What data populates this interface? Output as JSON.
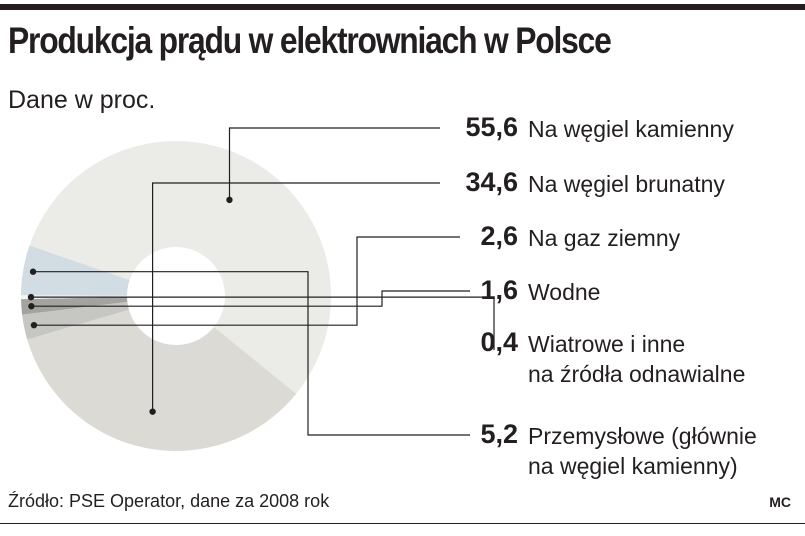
{
  "header": {
    "title": "Produkcja prądu w elektrowniach w Polsce",
    "subtitle": "Dane w proc."
  },
  "chart_data": {
    "type": "pie",
    "title": "Produkcja prądu w elektrowniach w Polsce",
    "subtitle": "Dane w proc.",
    "unit": "proc.",
    "slices": [
      {
        "label": "Na węgiel kamienny",
        "value": 55.6,
        "value_text": "55,6",
        "color": "#ebebe7"
      },
      {
        "label": "Na węgiel brunatny",
        "value": 34.6,
        "value_text": "34,6",
        "color": "#dbdad4"
      },
      {
        "label": "Na gaz ziemny",
        "value": 2.6,
        "value_text": "2,6",
        "color": "#c6c6c2"
      },
      {
        "label": "Wodne",
        "value": 1.6,
        "value_text": "1,6",
        "color": "#a3a3a0"
      },
      {
        "label": "Wiatrowe i inne na źródła odnawialne",
        "label_lines": [
          "Wiatrowe i inne",
          "na źródła odnawialne"
        ],
        "value": 0.4,
        "value_text": "0,4",
        "color": "#f2f4f6"
      },
      {
        "label": "Przemysłowe (głównie na węgiel kamienny)",
        "label_lines": [
          "Przemysłowe (głównie",
          "na węgiel kamienny)"
        ],
        "value": 5.2,
        "value_text": "5,2",
        "color": "#d2dde3"
      }
    ]
  },
  "footer": {
    "source": "Źródło: PSE Operator, dane za 2008 rok",
    "credit": "MC"
  }
}
